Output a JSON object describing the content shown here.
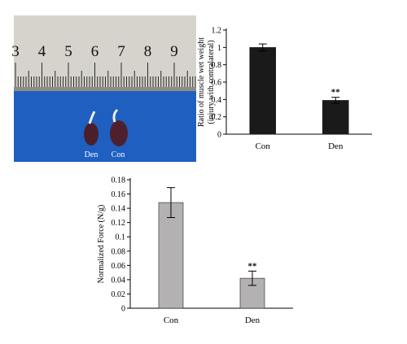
{
  "photo": {
    "ruler_numbers": [
      "3",
      "4",
      "5",
      "6",
      "7",
      "8",
      "9"
    ],
    "sample_labels": [
      "Den",
      "Con"
    ]
  },
  "chart_data": [
    {
      "type": "bar",
      "categories": [
        "Con",
        "Den"
      ],
      "values": [
        1.0,
        0.39
      ],
      "errors": [
        0.04,
        0.035
      ],
      "significance": [
        "",
        "**"
      ],
      "ylabel": "Ratio of muscle wet weight (injury with contralateral)",
      "ylabel_lines": [
        "Ratio of muscle wet weight",
        "(injury with contralateral)"
      ],
      "ylim": [
        0,
        1.2
      ],
      "yticks": [
        "0",
        "0.2",
        "0.4",
        "0.6",
        "0.8",
        "1",
        "1.2"
      ],
      "bar_color": "#1a1a1a",
      "grid": false
    },
    {
      "type": "bar",
      "categories": [
        "Con",
        "Den"
      ],
      "values": [
        0.148,
        0.042
      ],
      "errors": [
        0.021,
        0.01
      ],
      "significance": [
        "",
        "**"
      ],
      "ylabel": "Normalized Force (N/g)",
      "ylim": [
        0,
        0.18
      ],
      "yticks": [
        "0",
        "0.02",
        "0.04",
        "0.06",
        "0.08",
        "0.1",
        "0.12",
        "0.14",
        "0.16",
        "0.18"
      ],
      "bar_color": "#b3b1b1",
      "grid": false
    }
  ]
}
